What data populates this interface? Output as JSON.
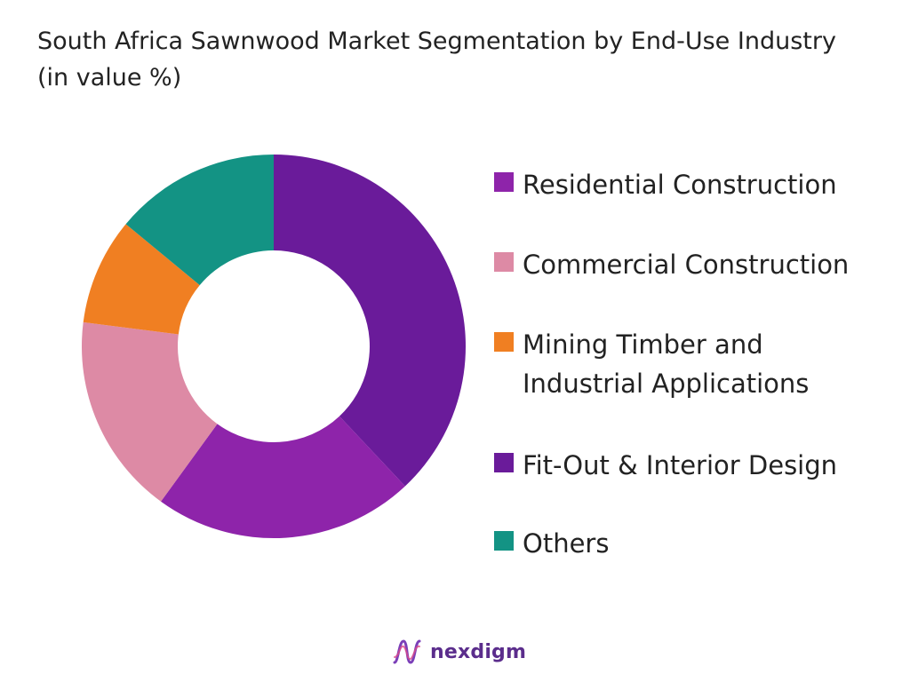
{
  "chart_data": {
    "type": "pie",
    "title": "South Africa Sawnwood Market Segmentation by End-Use Industry (in value %)",
    "donut": true,
    "legend_position": "right",
    "categories": [
      "Residential Construction",
      "Commercial Construction",
      "Mining Timber and\nIndustrial Applications",
      "Fit-Out & Interior Design",
      "Others"
    ],
    "legend_order": [
      0,
      1,
      2,
      3,
      4
    ],
    "slice_order": [
      3,
      0,
      1,
      2,
      4
    ],
    "values": [
      22,
      17,
      9,
      38,
      14
    ],
    "colors": [
      "#8e24aa",
      "#dd8aa5",
      "#f07f22",
      "#6a1b9a",
      "#139384"
    ]
  },
  "brand": {
    "name": "nexdigm",
    "logo_icon": "nexdigm-wave-icon"
  }
}
